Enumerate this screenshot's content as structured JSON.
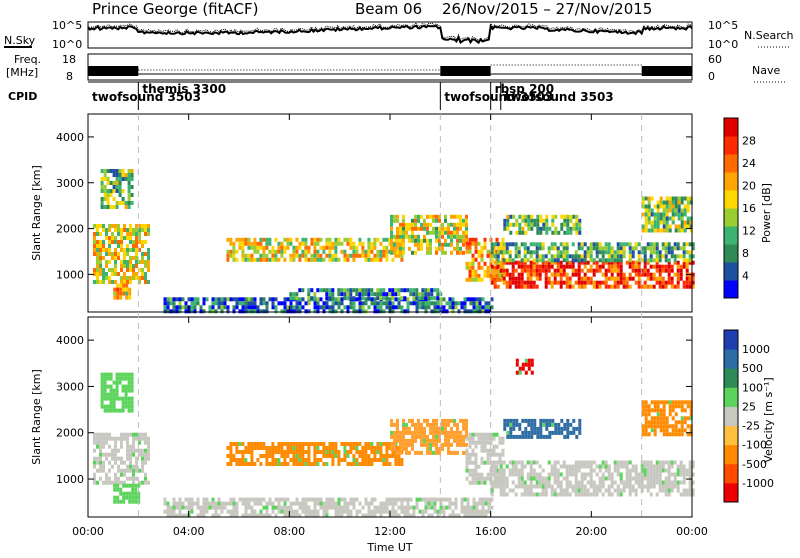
{
  "header": {
    "station": "Prince George (fitACF)",
    "beam": "Beam 06",
    "date_range": "26/Nov/2015 – 27/Nov/2015"
  },
  "side_labels": {
    "nsky": "N.Sky",
    "freq_line1": "Freq.",
    "freq_line2": "[MHz]",
    "cpid": "CPID",
    "nsearch": "N.Search",
    "nave": "Nave"
  },
  "strip_ticks": {
    "noise_left": [
      "10^5",
      "10^0"
    ],
    "noise_right": [
      "10^5",
      "10^0"
    ],
    "freq_left": [
      "18",
      "8"
    ],
    "nave_right": [
      "60",
      "0"
    ]
  },
  "cpid_segments": [
    {
      "label": "twofsound 3503",
      "start": 0.0,
      "end": 2.0
    },
    {
      "label": "themis 3300",
      "start": 2.0,
      "end": 14.0
    },
    {
      "label": "twofsound 3503",
      "start": 14.0,
      "end": 16.0
    },
    {
      "label": "rbsp 200",
      "start": 16.0,
      "end": 16.4
    },
    {
      "label": "twofsound 3503",
      "start": 16.4,
      "end": 22.0
    }
  ],
  "x_axis": {
    "label": "Time UT",
    "ticks": [
      "00:00",
      "04:00",
      "08:00",
      "12:00",
      "16:00",
      "20:00",
      "00:00"
    ]
  },
  "chart_data": [
    {
      "type": "heatmap",
      "name": "power",
      "ylabel": "Slant Range [km]",
      "ylim": [
        180,
        4500
      ],
      "yticks": [
        "1000",
        "2000",
        "3000",
        "4000"
      ],
      "xlim_hours": [
        0,
        24
      ],
      "colorbar_label": "Power [dB]",
      "colorbar_ticks": [
        "4",
        "8",
        "12",
        "16",
        "20",
        "24",
        "28"
      ],
      "colorbar_colors": [
        "#0000ff",
        "#1f4fa0",
        "#2e8b57",
        "#3cb371",
        "#9acd32",
        "#ffd700",
        "#ffa500",
        "#ff6a00",
        "#ff2a00",
        "#e00000"
      ],
      "echo_regions": [
        {
          "t0": 0.2,
          "t1": 2.4,
          "r0": 800,
          "r1": 2100,
          "level": 0.55
        },
        {
          "t0": 0.5,
          "t1": 1.7,
          "r0": 2500,
          "r1": 3300,
          "level": 0.4
        },
        {
          "t0": 1.0,
          "t1": 1.8,
          "r0": 500,
          "r1": 800,
          "level": 0.6
        },
        {
          "t0": 5.5,
          "t1": 12.5,
          "r0": 1300,
          "r1": 1800,
          "level": 0.55
        },
        {
          "t0": 12.0,
          "t1": 15.0,
          "r0": 1500,
          "r1": 2300,
          "level": 0.5
        },
        {
          "t0": 15.0,
          "t1": 16.5,
          "r0": 900,
          "r1": 1800,
          "level": 0.65
        },
        {
          "t0": 16.0,
          "t1": 24.0,
          "r0": 700,
          "r1": 1300,
          "level": 0.85
        },
        {
          "t0": 16.0,
          "t1": 24.0,
          "r0": 1300,
          "r1": 1700,
          "level": 0.35
        },
        {
          "t0": 3.0,
          "t1": 16.0,
          "r0": 200,
          "r1": 500,
          "level": 0.2
        },
        {
          "t0": 8.0,
          "t1": 14.0,
          "r0": 450,
          "r1": 700,
          "level": 0.25
        },
        {
          "t0": 16.5,
          "t1": 19.5,
          "r0": 1900,
          "r1": 2300,
          "level": 0.4
        },
        {
          "t0": 22.0,
          "t1": 24.0,
          "r0": 2000,
          "r1": 2700,
          "level": 0.4
        }
      ]
    },
    {
      "type": "heatmap",
      "name": "velocity",
      "ylabel": "Slant Range [km]",
      "ylim": [
        180,
        4500
      ],
      "yticks": [
        "1000",
        "2000",
        "3000",
        "4000"
      ],
      "xlim_hours": [
        0,
        24
      ],
      "colorbar_label": "Velocity [m s⁻¹]",
      "colorbar_ticks": [
        "1000",
        "500",
        "100",
        "25",
        "-25",
        "-100",
        "-500",
        "-1000"
      ],
      "colorbar_colors": [
        "#1f3fb0",
        "#2e6da4",
        "#2e8b57",
        "#5cd45c",
        "#c8c8c0",
        "#ffc040",
        "#ff8a00",
        "#ff4a00",
        "#ee0000"
      ],
      "echo_regions": [
        {
          "t0": 0.2,
          "t1": 2.4,
          "r0": 900,
          "r1": 2000,
          "color": "#c8c8c0"
        },
        {
          "t0": 0.5,
          "t1": 1.7,
          "r0": 2500,
          "r1": 3300,
          "color": "#5cd45c"
        },
        {
          "t0": 1.0,
          "t1": 2.0,
          "r0": 500,
          "r1": 900,
          "color": "#5cd45c"
        },
        {
          "t0": 5.5,
          "t1": 12.5,
          "r0": 1300,
          "r1": 1800,
          "color": "#ff8a00"
        },
        {
          "t0": 12.0,
          "t1": 15.0,
          "r0": 1600,
          "r1": 2300,
          "color": "#ffa030"
        },
        {
          "t0": 15.0,
          "t1": 16.5,
          "r0": 900,
          "r1": 2000,
          "color": "#c8c8c0"
        },
        {
          "t0": 16.0,
          "t1": 24.0,
          "r0": 700,
          "r1": 1400,
          "color": "#c8c8c0"
        },
        {
          "t0": 3.0,
          "t1": 16.0,
          "r0": 200,
          "r1": 600,
          "color": "#c8c8c0"
        },
        {
          "t0": 16.5,
          "t1": 19.5,
          "r0": 1900,
          "r1": 2300,
          "color": "#2e6da4"
        },
        {
          "t0": 17.0,
          "t1": 17.7,
          "r0": 3300,
          "r1": 3600,
          "color": "#ee0000"
        },
        {
          "t0": 22.0,
          "t1": 24.0,
          "r0": 2000,
          "r1": 2700,
          "color": "#ff8a00"
        }
      ]
    }
  ]
}
